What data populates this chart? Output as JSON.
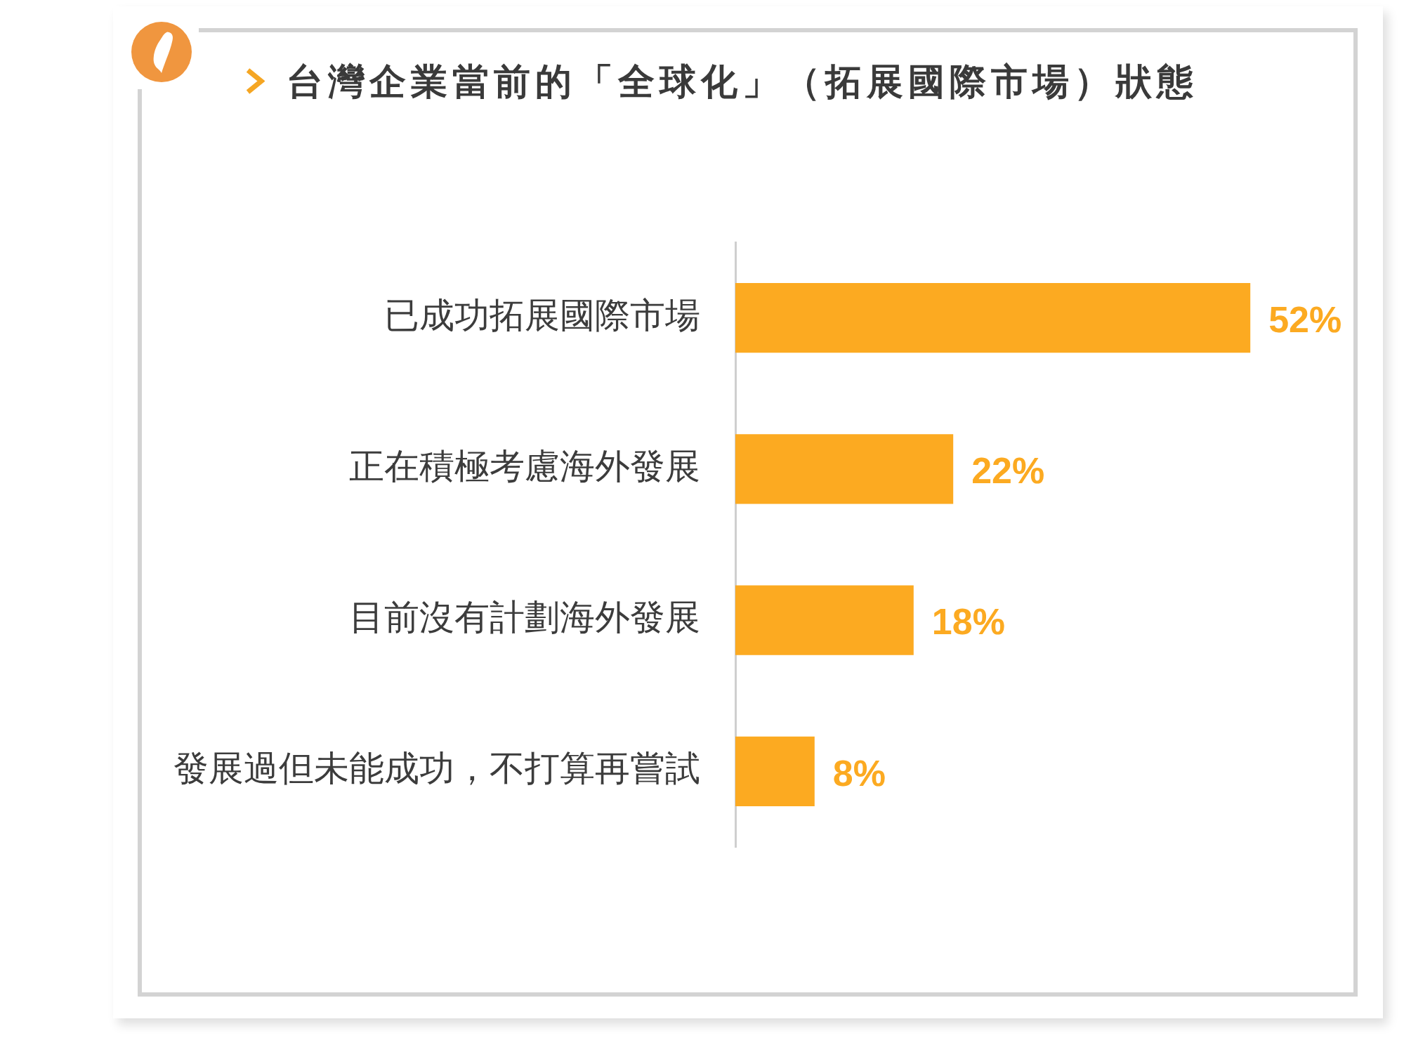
{
  "chart_data": {
    "type": "bar",
    "orientation": "horizontal",
    "title": "台灣企業當前的「全球化」（拓展國際市場）狀態",
    "categories": [
      "已成功拓展國際市場",
      "正在積極考慮海外發展",
      "目前沒有計劃海外發展",
      "發展過但未能成功，不打算再嘗試"
    ],
    "values": [
      52,
      22,
      18,
      8
    ],
    "value_labels": [
      "52%",
      "22%",
      "18%",
      "8%"
    ],
    "color": "#fcaa21",
    "tick_labels": "y"
  }
}
